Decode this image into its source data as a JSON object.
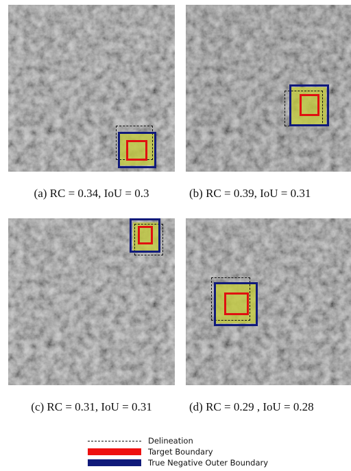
{
  "panels": [
    {
      "caption": "(a)  RC = 0.34,  IoU = 0.3"
    },
    {
      "caption": "(b)  RC = 0.39,  IoU = 0.31"
    },
    {
      "caption": "(c)  RC = 0.31,  IoU = 0.31"
    },
    {
      "caption": "(d)  RC = 0.29 ,  IoU = 0.28"
    }
  ],
  "legend": {
    "delineation": "Delineation",
    "target": "Target Boundary",
    "outer": "True Negative Outer Boundary"
  },
  "colors": {
    "delineation": "#111111",
    "target": "#e01010",
    "outer": "#101a7a",
    "patch": "#c4cc3c"
  }
}
